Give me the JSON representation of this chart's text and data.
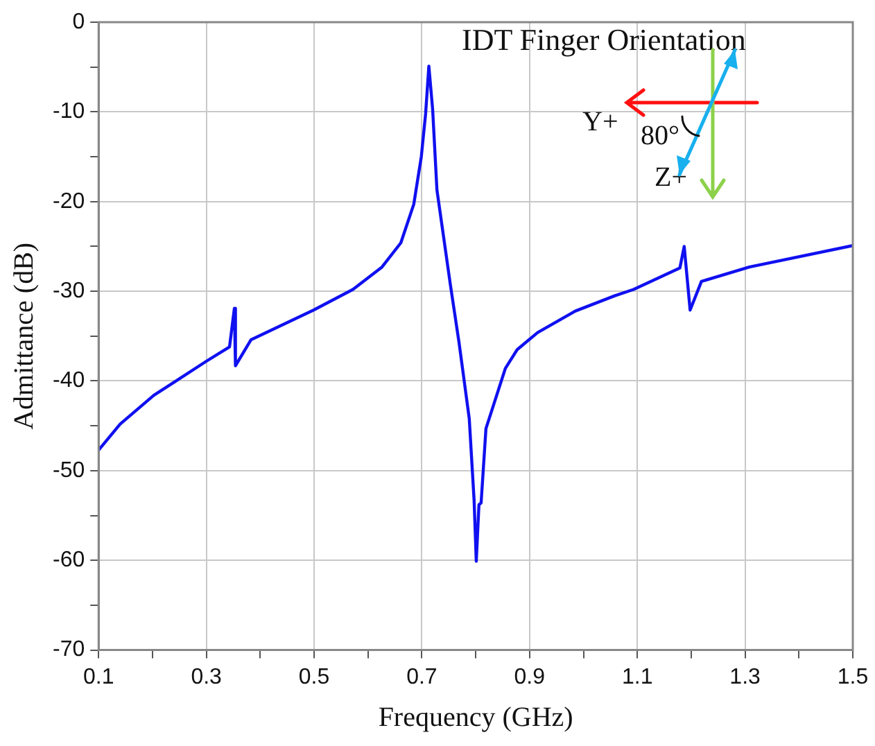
{
  "chart_data": {
    "type": "line",
    "xlabel": "Frequency (GHz)",
    "ylabel": "Admittance (dB)",
    "x": [
      0.1,
      0.14,
      0.2025,
      0.3,
      0.343,
      0.352,
      0.354,
      0.383,
      0.499,
      0.572,
      0.626,
      0.661,
      0.685,
      0.699,
      0.707,
      0.713,
      0.72,
      0.728,
      0.753,
      0.769,
      0.788,
      0.797,
      0.801,
      0.806,
      0.81,
      0.819,
      0.855,
      0.877,
      0.915,
      0.985,
      1.058,
      1.093,
      1.179,
      1.187,
      1.198,
      1.219,
      1.308,
      1.5
    ],
    "series": [
      {
        "color": "#1010f0",
        "values": [
          -47.7,
          -44.8,
          -41.6,
          -37.8,
          -36.2,
          -31.9,
          -38.3,
          -35.4,
          -32.1,
          -29.8,
          -27.3,
          -24.6,
          -20.3,
          -15.0,
          -10.2,
          -4.9,
          -9.7,
          -18.7,
          -29.3,
          -35.7,
          -44.2,
          -53.3,
          -60.1,
          -53.8,
          -53.6,
          -45.3,
          -38.6,
          -36.5,
          -34.6,
          -32.2,
          -30.5,
          -29.8,
          -27.4,
          -25.0,
          -32.1,
          -28.9,
          -27.3,
          -24.9
        ]
      }
    ],
    "xlim": [
      0.1,
      1.5
    ],
    "xticks": [
      0.1,
      {
        "value": 0.2,
        "label": null
      },
      0.3,
      {
        "value": 0.4,
        "label": null
      },
      0.5,
      {
        "value": 0.6,
        "label": null
      },
      0.7,
      {
        "value": 0.8,
        "label": null
      },
      0.9,
      {
        "value": 1.0,
        "label": null
      },
      1.1,
      {
        "value": 1.2,
        "label": null
      },
      1.3,
      {
        "value": 1.4,
        "label": null
      },
      1.5
    ],
    "ylim": [
      -70,
      0
    ],
    "yticks": [
      -70,
      {
        "value": -65,
        "label": null
      },
      -60,
      {
        "value": -55,
        "label": null
      },
      -50,
      {
        "value": -45,
        "label": null
      },
      -40,
      {
        "value": -35,
        "label": null
      },
      -30,
      {
        "value": -25,
        "label": null
      },
      -20,
      {
        "value": -15,
        "label": null
      },
      -10,
      {
        "value": -5,
        "label": null
      },
      0
    ],
    "grid": true,
    "marker": "none",
    "line_style": "solid",
    "annotations": [
      "IDT Finger Orientation",
      "Y+",
      "80°",
      "Z+"
    ]
  }
}
